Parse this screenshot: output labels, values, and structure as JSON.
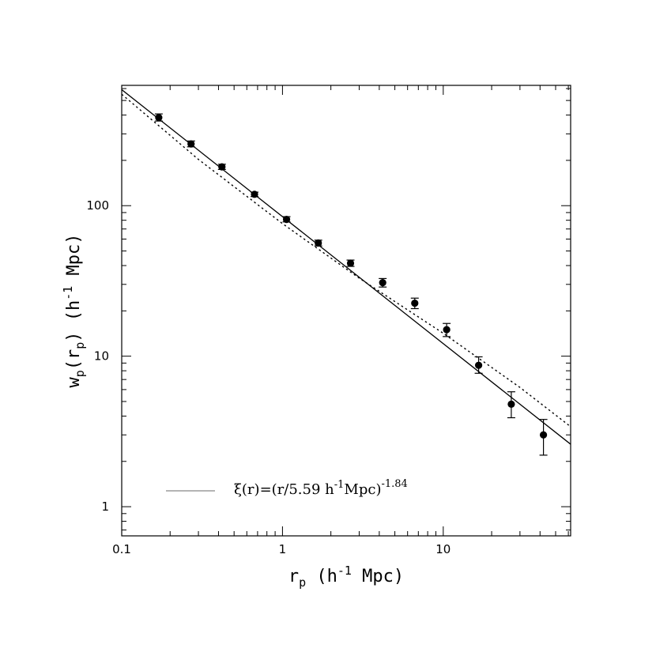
{
  "chart_data": {
    "type": "scatter",
    "title": "",
    "xlabel": {
      "main": "r",
      "sub": "p",
      "rest_pre": " (h",
      "sup": "-1",
      "rest_post": " Mpc)"
    },
    "ylabel": {
      "main": "w",
      "sub1": "p",
      "mid": "(r",
      "sub2": "p",
      "rest_pre": ") (h",
      "sup": "-1",
      "rest_post": " Mpc)"
    },
    "x_scale": "log",
    "y_scale": "log",
    "xlim": [
      0.1,
      62
    ],
    "ylim": [
      0.64,
      630
    ],
    "x_tick_labels": [
      {
        "value": 0.1,
        "label": "0.1"
      },
      {
        "value": 1,
        "label": "1"
      },
      {
        "value": 10,
        "label": "10"
      }
    ],
    "y_tick_labels": [
      {
        "value": 1,
        "label": "1"
      },
      {
        "value": 10,
        "label": "10"
      },
      {
        "value": 100,
        "label": "100"
      }
    ],
    "grid": false,
    "legend": {
      "placement": "bottom-left",
      "line_style": "solid",
      "line_color": "#888888",
      "text": {
        "pre": "ξ(r)=(r/5.59 h",
        "sup1": "-1",
        "mid": "Mpc)",
        "sup2": "-1.84"
      }
    },
    "series": [
      {
        "kind": "points_with_errors",
        "marker": "filled-circle",
        "x": [
          0.17,
          0.27,
          0.42,
          0.67,
          1.06,
          1.67,
          2.65,
          4.2,
          6.65,
          10.5,
          16.6,
          26.5,
          42.0
        ],
        "y": [
          385,
          257,
          181,
          119,
          81,
          56.5,
          41.5,
          30.8,
          22.5,
          15.0,
          8.7,
          4.8,
          3.0
        ],
        "y_err_low": [
          20,
          11,
          7,
          4,
          3,
          2.5,
          2,
          2,
          1.8,
          1.5,
          1.0,
          0.9,
          0.8
        ],
        "y_err_high": [
          22,
          12,
          7.5,
          4,
          3.5,
          2.5,
          2,
          2,
          1.8,
          1.5,
          1.2,
          1.0,
          0.8
        ]
      },
      {
        "kind": "line",
        "style": "solid",
        "x": [
          0.1,
          62
        ],
        "y": [
          590,
          2.6
        ]
      },
      {
        "kind": "line",
        "style": "dotted",
        "x": [
          0.1,
          0.3,
          1,
          3,
          10,
          30,
          62
        ],
        "y": [
          550,
          203,
          76,
          33,
          14.2,
          6.2,
          3.4
        ]
      }
    ]
  }
}
